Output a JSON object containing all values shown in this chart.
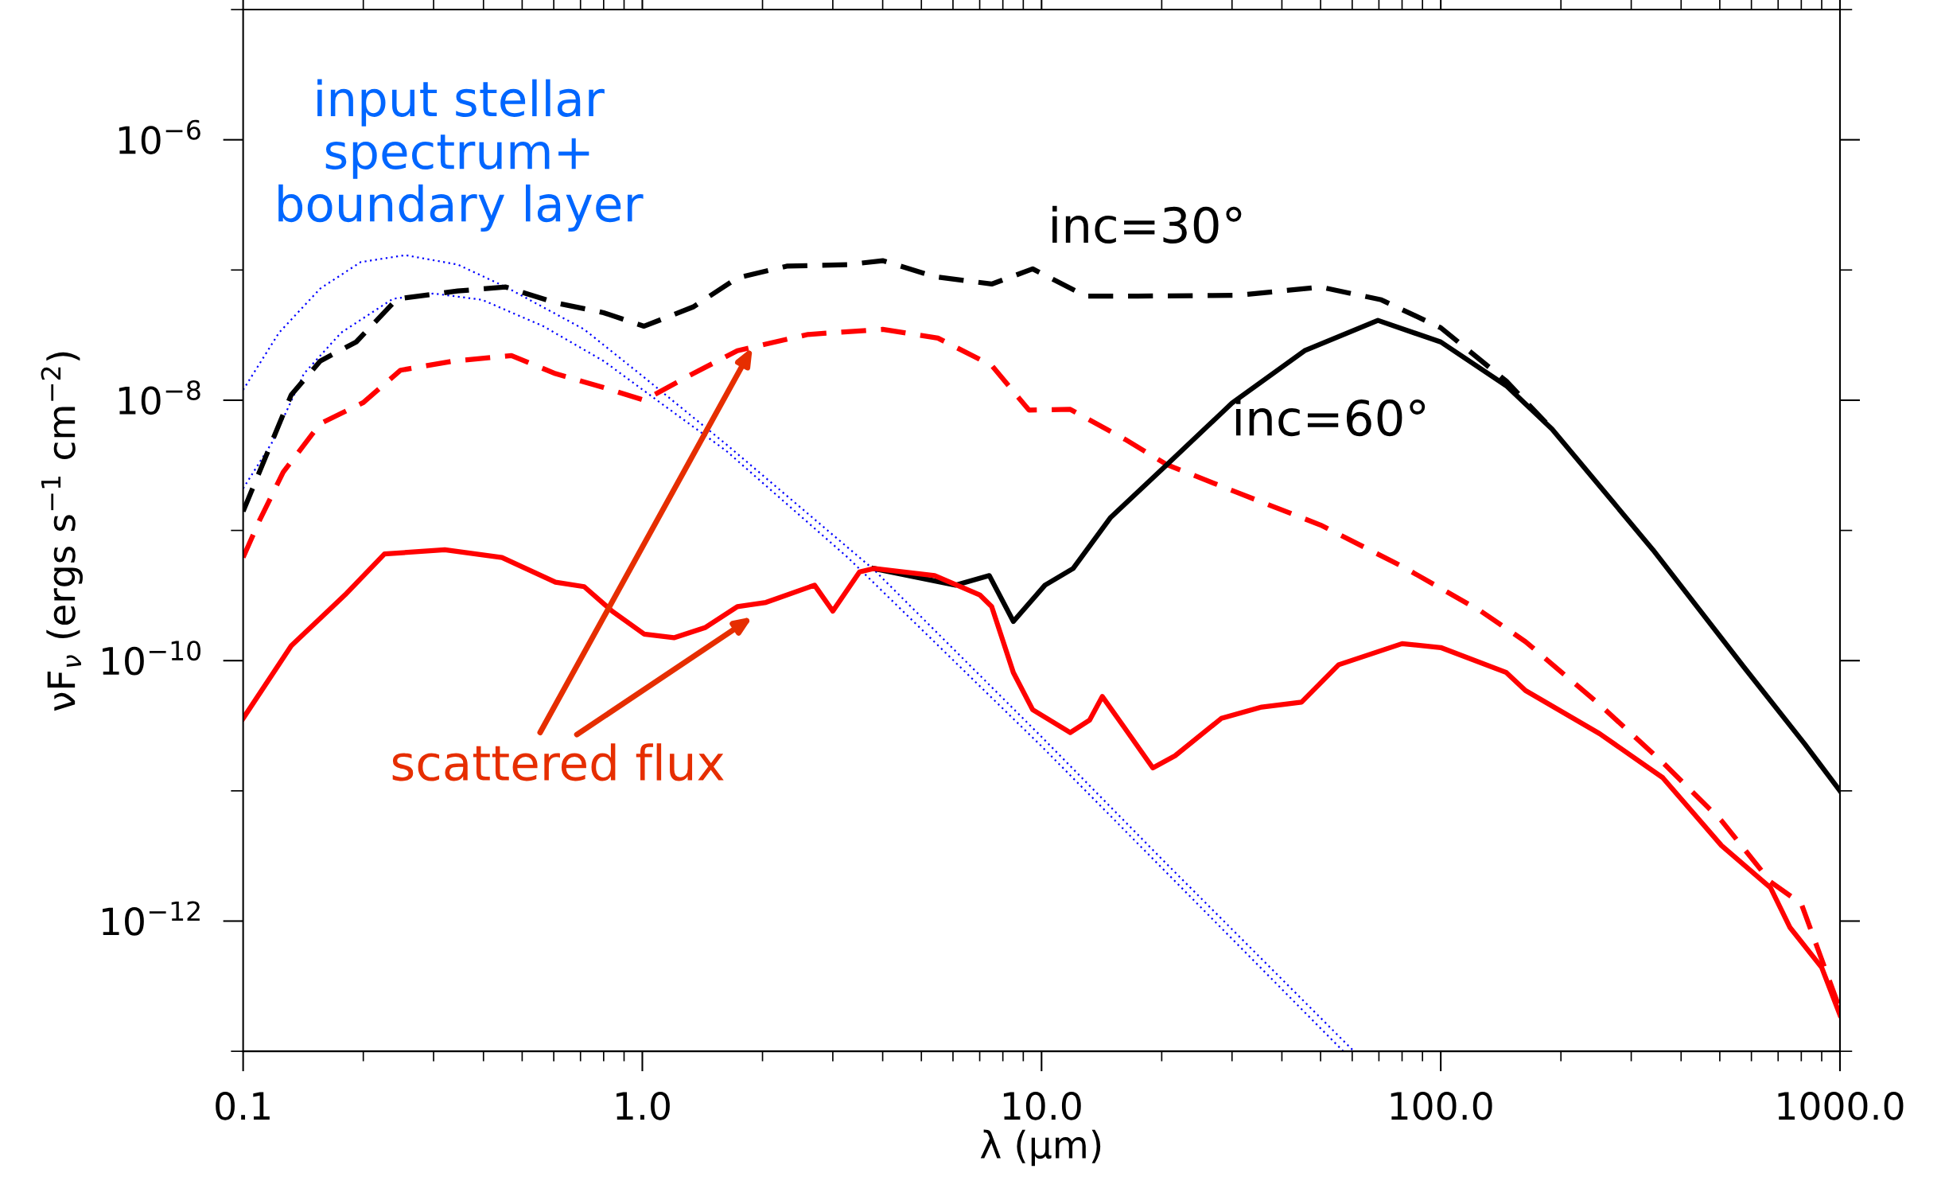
{
  "chart_data": {
    "type": "line",
    "xlabel": "λ (μm)",
    "ylabel": "νF$_{ν}$ (ergs s$^{−1}$ cm$^{−2}$)",
    "log": "xy",
    "xlim": [
      0.1,
      1000
    ],
    "xticks": [
      {
        "value": 0.1,
        "label": "0.1"
      },
      {
        "value": 1,
        "label": "1.0"
      },
      {
        "value": 10,
        "label": "10.0"
      },
      {
        "value": 100,
        "label": "100.0"
      },
      {
        "value": 1000,
        "label": "1000.0"
      }
    ],
    "ylim": [
      1e-13,
      1e-05
    ],
    "yticks": [
      {
        "value": 1e-12,
        "label": "10$^{−12}$"
      },
      {
        "value": 1e-10,
        "label": "10$^{−10}$"
      },
      {
        "value": 1e-08,
        "label": "10$^{−8}$"
      },
      {
        "value": 1e-06,
        "label": "10$^{−6}$"
      }
    ],
    "series": [
      {
        "color": "#0000ff",
        "line_style": "dotted",
        "x": [
          0.1,
          0.123,
          0.156,
          0.197,
          0.255,
          0.345,
          0.455,
          0.715,
          1.01,
          1.62,
          3.8,
          10,
          20,
          60.6
        ],
        "values": [
          1.2e-08,
          3.3e-08,
          7.2e-08,
          1.15e-07,
          1.3e-07,
          1.1e-07,
          7.4e-08,
          3.5e-08,
          1.5e-08,
          4.6e-09,
          5e-10,
          2.6e-11,
          3e-12,
          1e-13
        ]
      },
      {
        "color": "#0000ff",
        "line_style": "dotted",
        "x": [
          0.1,
          0.118,
          0.142,
          0.176,
          0.237,
          0.3,
          0.397,
          0.565,
          0.8,
          1.14,
          1.62,
          3.27,
          10,
          57
        ],
        "values": [
          2.1e-09,
          4.7e-09,
          1.6e-08,
          3.3e-08,
          6e-08,
          6.6e-08,
          5.9e-08,
          3.7e-08,
          2e-08,
          9e-09,
          4.1e-09,
          6.2e-10,
          2.2e-11,
          1e-13
        ]
      },
      {
        "color": "#000000",
        "line_style": "dashed",
        "x": [
          0.1,
          0.132,
          0.156,
          0.192,
          0.243,
          0.345,
          0.455,
          0.606,
          0.8,
          1.01,
          1.34,
          1.73,
          2.3,
          3.27,
          4.0,
          5.4,
          7.5,
          9.5,
          12.9,
          17.4,
          31.2,
          50,
          71,
          100,
          146,
          190
        ],
        "values": [
          1.4e-09,
          1.1e-08,
          2e-08,
          2.8e-08,
          6e-08,
          6.9e-08,
          7.4e-08,
          5.6e-08,
          4.7e-08,
          3.7e-08,
          5.2e-08,
          8.7e-08,
          1.07e-07,
          1.1e-07,
          1.18e-07,
          8.9e-08,
          7.8e-08,
          1.02e-07,
          6.3e-08,
          6.3e-08,
          6.4e-08,
          7.4e-08,
          5.9e-08,
          3.6e-08,
          1.4e-08,
          6e-09
        ]
      },
      {
        "color": "#ff0000",
        "line_style": "dashed",
        "x": [
          0.1,
          0.11,
          0.126,
          0.156,
          0.2,
          0.248,
          0.337,
          0.47,
          0.606,
          0.8,
          1.01,
          1.34,
          1.73,
          2.6,
          4.0,
          5.5,
          7.5,
          9.3,
          11.8,
          16.2,
          20.6,
          31,
          50,
          80,
          126,
          163,
          250,
          360,
          505,
          670,
          800,
          1000
        ],
        "values": [
          6.2e-10,
          1.2e-09,
          2.8e-09,
          6.6e-09,
          9.6e-09,
          1.7e-08,
          2e-08,
          2.2e-08,
          1.6e-08,
          1.25e-08,
          1e-08,
          1.6e-08,
          2.4e-08,
          3.2e-08,
          3.5e-08,
          3e-08,
          1.85e-08,
          8.4e-09,
          8.5e-09,
          5e-09,
          3.2e-09,
          1.95e-09,
          1.1e-09,
          5.3e-10,
          2.4e-10,
          1.4e-10,
          4.6e-11,
          1.65e-11,
          5.9e-12,
          2e-12,
          1.36e-12,
          2.1e-13
        ]
      },
      {
        "color": "#000000",
        "line_style": "solid",
        "x": [
          3.8,
          6.1,
          7.4,
          8.5,
          10.2,
          12.0,
          14.9,
          20.6,
          30,
          45.6,
          69.6,
          100,
          146,
          190,
          340,
          575,
          815,
          1000
        ],
        "values": [
          5.1e-10,
          3.8e-10,
          4.5e-10,
          2e-10,
          3.8e-10,
          5.1e-10,
          1.26e-09,
          3.2e-09,
          9.5e-09,
          2.4e-08,
          4.1e-08,
          2.8e-08,
          1.29e-08,
          6e-09,
          7.1e-10,
          8.9e-11,
          2.3e-11,
          1e-11
        ]
      },
      {
        "color": "#ff0000",
        "line_style": "solid",
        "x": [
          0.1,
          0.132,
          0.18,
          0.226,
          0.32,
          0.445,
          0.606,
          0.715,
          0.84,
          1.01,
          1.2,
          1.44,
          1.73,
          2.04,
          2.7,
          3.0,
          3.5,
          3.8,
          5.4,
          7.0,
          7.5,
          8.5,
          9.5,
          11.8,
          13.2,
          14.2,
          16.2,
          19,
          21.6,
          28.2,
          35.6,
          44.8,
          55.5,
          80,
          100,
          146,
          163,
          250,
          360,
          505,
          670,
          750,
          900,
          1000
        ],
        "values": [
          3.6e-11,
          1.3e-10,
          3.2e-10,
          6.6e-10,
          7.1e-10,
          6.2e-10,
          4e-10,
          3.7e-10,
          2.4e-10,
          1.6e-10,
          1.5e-10,
          1.8e-10,
          2.6e-10,
          2.8e-10,
          3.8e-10,
          2.4e-10,
          4.8e-10,
          5.1e-10,
          4.5e-10,
          3.2e-10,
          2.6e-10,
          8.1e-11,
          4.2e-11,
          2.8e-11,
          3.5e-11,
          5.3e-11,
          3e-11,
          1.5e-11,
          1.86e-11,
          3.6e-11,
          4.4e-11,
          4.8e-11,
          9.3e-11,
          1.35e-10,
          1.26e-10,
          8.1e-11,
          5.9e-11,
          2.75e-11,
          1.26e-11,
          3.8e-12,
          1.8e-12,
          8.9e-13,
          4.4e-13,
          1.9e-13
        ]
      }
    ],
    "annotations": [
      "input stellar\nspectrum+\nboundary layer",
      "inc=30°",
      "inc=60°",
      "scattered flux"
    ]
  }
}
